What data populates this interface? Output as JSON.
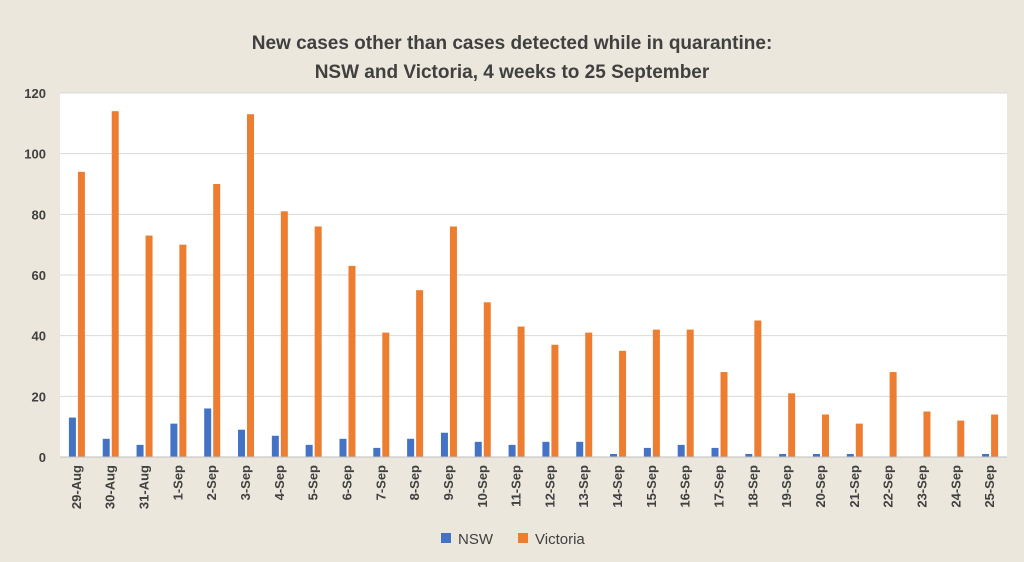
{
  "chart_data": {
    "type": "bar",
    "title_lines": [
      "New cases other than cases detected while in quarantine:",
      "NSW and Victoria, 4 weeks to 25 September"
    ],
    "xlabel": "",
    "ylabel": "",
    "ylim": [
      0,
      120
    ],
    "yticks": [
      0,
      20,
      40,
      60,
      80,
      100,
      120
    ],
    "grid": true,
    "legend_position": "bottom",
    "categories": [
      "29-Aug",
      "30-Aug",
      "31-Aug",
      "1-Sep",
      "2-Sep",
      "3-Sep",
      "4-Sep",
      "5-Sep",
      "6-Sep",
      "7-Sep",
      "8-Sep",
      "9-Sep",
      "10-Sep",
      "11-Sep",
      "12-Sep",
      "13-Sep",
      "14-Sep",
      "15-Sep",
      "16-Sep",
      "17-Sep",
      "18-Sep",
      "19-Sep",
      "20-Sep",
      "21-Sep",
      "22-Sep",
      "23-Sep",
      "24-Sep",
      "25-Sep"
    ],
    "series": [
      {
        "name": "NSW",
        "color": "#4472c4",
        "values": [
          13,
          6,
          4,
          11,
          16,
          9,
          7,
          4,
          6,
          3,
          6,
          8,
          5,
          4,
          5,
          5,
          1,
          3,
          4,
          3,
          1,
          1,
          1,
          1,
          0,
          0,
          0,
          1
        ]
      },
      {
        "name": "Victoria",
        "color": "#ed7d31",
        "values": [
          94,
          114,
          73,
          70,
          90,
          113,
          81,
          76,
          63,
          41,
          55,
          76,
          51,
          43,
          37,
          41,
          35,
          42,
          42,
          28,
          45,
          21,
          14,
          11,
          28,
          15,
          12,
          14
        ]
      }
    ]
  }
}
